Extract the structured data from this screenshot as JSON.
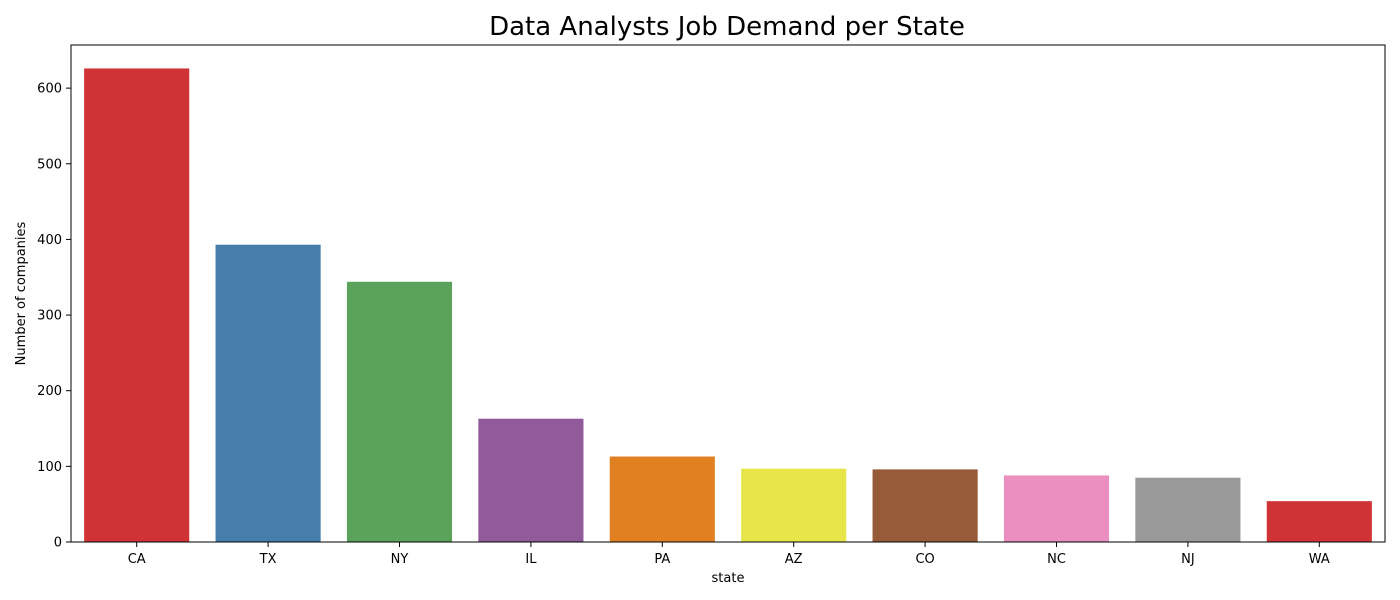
{
  "chart_data": {
    "type": "bar",
    "title": "Data Analysts Job Demand per State",
    "xlabel": "state",
    "ylabel": "Number of companies",
    "categories": [
      "CA",
      "TX",
      "NY",
      "IL",
      "PA",
      "AZ",
      "CO",
      "NC",
      "NJ",
      "WA"
    ],
    "values": [
      626,
      393,
      344,
      163,
      113,
      97,
      96,
      88,
      85,
      54
    ],
    "colors": [
      "#cf3336",
      "#467eab",
      "#5ba35a",
      "#915a9a",
      "#e08020",
      "#e8e54a",
      "#975b39",
      "#ea8fbf",
      "#999999",
      "#cf3336"
    ],
    "ylim": [
      0,
      657
    ],
    "yticks": [
      0,
      100,
      200,
      300,
      400,
      500,
      600
    ],
    "grid": false,
    "legend": "none"
  }
}
